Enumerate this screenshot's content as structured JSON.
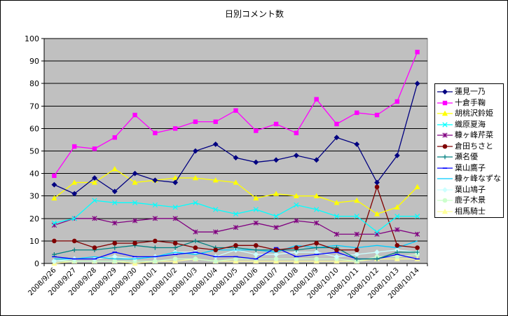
{
  "chart_data": {
    "type": "line",
    "title": "日別コメント数",
    "xlabel": "",
    "ylabel": "",
    "ylim": [
      0,
      100
    ],
    "yticks": [
      0,
      10,
      20,
      30,
      40,
      50,
      60,
      70,
      80,
      90,
      100
    ],
    "grid": true,
    "plot_background": "#c0c0c0",
    "legend_position": "right",
    "categories": [
      "2008/9/26",
      "2008/9/27",
      "2008/9/28",
      "2008/9/29",
      "2008/9/30",
      "2008/10/1",
      "2008/10/2",
      "2008/10/3",
      "2008/10/4",
      "2008/10/5",
      "2008/10/6",
      "2008/10/7",
      "2008/10/8",
      "2008/10/9",
      "2008/10/10",
      "2008/10/11",
      "2008/10/12",
      "2008/10/13",
      "2008/10/14"
    ],
    "series": [
      {
        "name": "蓮見一乃",
        "color": "#000080",
        "marker": "diamond",
        "values": [
          35,
          31,
          38,
          32,
          40,
          37,
          36,
          50,
          53,
          47,
          45,
          46,
          48,
          46,
          56,
          53,
          36,
          48,
          80
        ]
      },
      {
        "name": "十倉手鞠",
        "color": "#ff00ff",
        "marker": "square",
        "values": [
          39,
          52,
          51,
          56,
          66,
          58,
          60,
          63,
          63,
          68,
          59,
          62,
          58,
          73,
          62,
          67,
          66,
          72,
          94
        ]
      },
      {
        "name": "胡桃沢鈴姫",
        "color": "#ffff00",
        "marker": "triangle",
        "values": [
          29,
          36,
          36,
          42,
          36,
          37,
          38,
          38,
          37,
          36,
          29,
          31,
          30,
          30,
          27,
          28,
          22,
          25,
          34
        ]
      },
      {
        "name": "織原夏海",
        "color": "#00ffff",
        "marker": "x",
        "values": [
          18,
          20,
          28,
          27,
          27,
          26,
          25,
          27,
          24,
          22,
          24,
          21,
          26,
          24,
          21,
          21,
          14,
          21,
          21
        ]
      },
      {
        "name": "糠ヶ峰芹菜",
        "color": "#800080",
        "marker": "star",
        "values": [
          17,
          20,
          20,
          18,
          19,
          20,
          20,
          14,
          14,
          16,
          18,
          16,
          19,
          18,
          13,
          13,
          13,
          15,
          13
        ]
      },
      {
        "name": "倉田ちさと",
        "color": "#800000",
        "marker": "circle",
        "values": [
          10,
          10,
          7,
          9,
          9,
          10,
          9,
          7,
          6,
          8,
          8,
          6,
          7,
          9,
          6,
          6,
          34,
          8,
          7
        ]
      },
      {
        "name": "瀬名優",
        "color": "#008080",
        "marker": "plus",
        "values": [
          4,
          6,
          6,
          7,
          8,
          7,
          7,
          10,
          7,
          7,
          6,
          6,
          6,
          7,
          7,
          2,
          2,
          5,
          5
        ]
      },
      {
        "name": "葉山鷹子",
        "color": "#0000ff",
        "marker": "dash",
        "values": [
          3,
          2,
          2,
          5,
          3,
          3,
          4,
          5,
          3,
          3,
          2,
          7,
          3,
          4,
          5,
          2,
          2,
          4,
          2
        ]
      },
      {
        "name": "糠ヶ峰なずな",
        "color": "#00ccff",
        "marker": "none",
        "values": [
          2,
          2,
          3,
          2,
          2,
          3,
          5,
          4,
          6,
          6,
          6,
          5,
          8,
          7,
          8,
          7,
          8,
          7,
          10
        ]
      },
      {
        "name": "葉山鳩子",
        "color": "#ccffff",
        "marker": "diamond",
        "values": [
          1,
          2,
          2,
          3,
          2,
          3,
          5,
          5,
          3,
          6,
          4,
          4,
          5,
          5,
          3,
          4,
          5,
          6,
          5
        ]
      },
      {
        "name": "鹿子木景",
        "color": "#ccffcc",
        "marker": "circle",
        "values": [
          1,
          1,
          1,
          1,
          1,
          1,
          2,
          2,
          1,
          2,
          2,
          2,
          2,
          2,
          2,
          1,
          3,
          3,
          4
        ]
      },
      {
        "name": "相馬騎士",
        "color": "#ffff99",
        "marker": "triangle",
        "values": [
          0,
          1,
          1,
          1,
          0,
          1,
          1,
          2,
          1,
          1,
          1,
          1,
          1,
          1,
          1,
          1,
          2,
          2,
          2
        ]
      }
    ]
  }
}
